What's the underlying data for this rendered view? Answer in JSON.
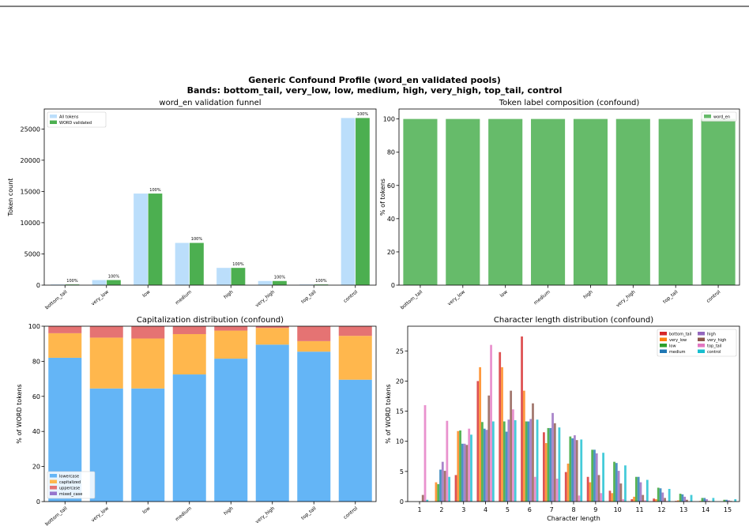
{
  "title": "Generic Confound Profile (word_en validated pools)",
  "subtitle": "Bands: bottom_tail, very_low, low, medium, high, very_high, top_tail, control",
  "chart_data": [
    {
      "type": "bar",
      "title": "word_en validation funnel",
      "ylabel": "Token count",
      "categories": [
        "bottom_tail",
        "very_low",
        "low",
        "medium",
        "high",
        "very_high",
        "top_tail",
        "control"
      ],
      "series": [
        {
          "name": "All tokens",
          "color": "#bbdefb",
          "values": [
            150,
            850,
            14700,
            6800,
            2800,
            700,
            150,
            26800
          ]
        },
        {
          "name": "WORD validated",
          "color": "#4caf50",
          "values": [
            150,
            850,
            14700,
            6800,
            2800,
            700,
            150,
            26800
          ]
        }
      ],
      "bar_labels": [
        "100%",
        "100%",
        "100%",
        "100%",
        "100%",
        "100%",
        "100%",
        "100%"
      ],
      "ylim": [
        0,
        28200
      ],
      "yticks": [
        0,
        5000,
        10000,
        15000,
        20000,
        25000
      ],
      "legend": "upper left"
    },
    {
      "type": "bar",
      "title": "Token label composition (confound)",
      "ylabel": "% of tokens",
      "categories": [
        "bottom_tail",
        "very_low",
        "low",
        "medium",
        "high",
        "very_high",
        "top_tail",
        "control"
      ],
      "series": [
        {
          "name": "word_en",
          "color": "#66bb6a",
          "values": [
            100,
            100,
            100,
            100,
            100,
            100,
            100,
            100
          ]
        }
      ],
      "ylim": [
        0,
        106
      ],
      "yticks": [
        0,
        20,
        40,
        60,
        80,
        100
      ],
      "legend": "upper right"
    },
    {
      "type": "bar",
      "stacked": true,
      "title": "Capitalization distribution (confound)",
      "ylabel": "% of WORD tokens",
      "categories": [
        "bottom_tail",
        "very_low",
        "low",
        "medium",
        "high",
        "very_high",
        "top_tail",
        "control"
      ],
      "series": [
        {
          "name": "lowercase",
          "color": "#64b5f6",
          "values": [
            82,
            64.5,
            64.5,
            72.5,
            81.5,
            89.5,
            85.5,
            69.5
          ]
        },
        {
          "name": "capitalized",
          "color": "#ffb74d",
          "values": [
            14,
            29,
            28.5,
            23,
            16,
            9.5,
            6,
            25
          ]
        },
        {
          "name": "uppercase",
          "color": "#e57373",
          "values": [
            4,
            6.5,
            7,
            4.5,
            2.5,
            1,
            8.5,
            5.5
          ]
        },
        {
          "name": "mixed_case",
          "color": "#9575cd",
          "values": [
            0,
            0,
            0,
            0,
            0,
            0,
            0,
            0
          ]
        }
      ],
      "ylim": [
        0,
        100
      ],
      "yticks": [
        0,
        20,
        40,
        60,
        80,
        100
      ],
      "legend": "lower left"
    },
    {
      "type": "bar",
      "title": "Character length distribution (confound)",
      "ylabel": "% of WORD tokens",
      "xlabel": "Character length",
      "x": [
        1,
        2,
        3,
        4,
        5,
        6,
        7,
        8,
        9,
        10,
        11,
        12,
        13,
        14,
        15
      ],
      "series": [
        {
          "name": "bottom_tail",
          "color": "#d62728",
          "values": [
            0,
            0,
            4.4,
            20,
            24.8,
            27.4,
            11.5,
            4.9,
            4.1,
            1.8,
            0.4,
            0.5,
            0.1,
            0,
            0
          ]
        },
        {
          "name": "very_low",
          "color": "#ff7f0e",
          "values": [
            0,
            3.2,
            11.7,
            22.3,
            22.3,
            18.4,
            9.7,
            6.3,
            3.2,
            1.4,
            0.8,
            0.4,
            0.2,
            0.1,
            0
          ]
        },
        {
          "name": "low",
          "color": "#2ca02c",
          "values": [
            0,
            2.9,
            11.8,
            13.2,
            13.3,
            13.3,
            12.2,
            10.8,
            8.6,
            6.6,
            4.1,
            2.3,
            1.3,
            0.6,
            0.3
          ]
        },
        {
          "name": "medium",
          "color": "#1f77b4",
          "values": [
            0,
            5.3,
            9.6,
            12.1,
            11.6,
            13.3,
            12.2,
            10.5,
            8.6,
            6.4,
            4.1,
            2.2,
            1.2,
            0.6,
            0.3
          ]
        },
        {
          "name": "high",
          "color": "#9467bd",
          "values": [
            0,
            6.6,
            9.6,
            11.9,
            13.6,
            13.7,
            14.7,
            11,
            8,
            5.1,
            3.2,
            1.5,
            0.8,
            0.4,
            0.2
          ]
        },
        {
          "name": "very_high",
          "color": "#8c564b",
          "values": [
            1.1,
            5.1,
            9.4,
            17.6,
            18.4,
            16.3,
            13,
            10.2,
            4.4,
            3,
            1.1,
            0.6,
            0.3,
            0.1,
            0.1
          ]
        },
        {
          "name": "top_tail",
          "color": "#e377c2",
          "values": [
            16,
            13.4,
            12.1,
            26,
            15.3,
            4.1,
            3.8,
            1,
            1.4,
            0.4,
            0.2,
            0.1,
            0,
            0,
            0
          ]
        },
        {
          "name": "control",
          "color": "#17becf",
          "values": [
            0.3,
            4.1,
            11.1,
            13.3,
            13.5,
            13.6,
            12.3,
            10.3,
            8.1,
            6,
            3.6,
            2.1,
            1.1,
            0.6,
            0.4
          ]
        }
      ],
      "xlim": [
        0.46,
        15.54
      ],
      "xticks": [
        1,
        2,
        3,
        4,
        5,
        6,
        7,
        8,
        9,
        10,
        11,
        12,
        13,
        14,
        15
      ],
      "ylim": [
        0,
        29.1
      ],
      "yticks": [
        0,
        5,
        10,
        15,
        20,
        25
      ],
      "legend": "upper right",
      "legend_ncol": 2
    }
  ]
}
